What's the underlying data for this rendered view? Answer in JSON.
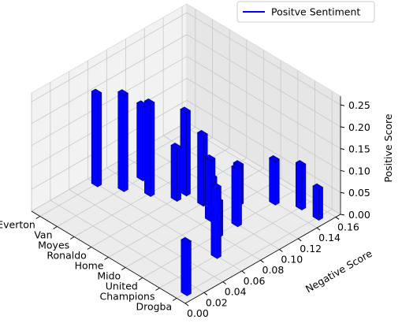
{
  "chart_data": {
    "type": "bar3d",
    "xlabel": "",
    "ylabel": "Negative Score",
    "zlabel": "Positive Score",
    "categories": [
      "Everton",
      "Van",
      "Moyes",
      "Ronaldo",
      "Home",
      "Mido",
      "United",
      "Champions",
      "Drogba"
    ],
    "ylim": [
      0,
      0.165
    ],
    "yticks": [
      {
        "value": 0,
        "label": "0.00"
      },
      {
        "value": 0.02,
        "label": "0.02"
      },
      {
        "value": 0.04,
        "label": "0.04"
      },
      {
        "value": 0.06,
        "label": "0.06"
      },
      {
        "value": 0.08,
        "label": "0.08"
      },
      {
        "value": 0.1,
        "label": "0.10"
      },
      {
        "value": 0.12,
        "label": "0.12"
      },
      {
        "value": 0.14,
        "label": "0.14"
      },
      {
        "value": 0.16,
        "label": "0.16"
      }
    ],
    "zlim": [
      0,
      0.27
    ],
    "zticks": [
      {
        "value": 0,
        "label": "0.00"
      },
      {
        "value": 0.05,
        "label": "0.05"
      },
      {
        "value": 0.1,
        "label": "0.10"
      },
      {
        "value": 0.15,
        "label": "0.15"
      },
      {
        "value": 0.2,
        "label": "0.20"
      },
      {
        "value": 0.25,
        "label": "0.25"
      }
    ],
    "grid": true,
    "legend": "upper right",
    "series": [
      {
        "name": "Positve Sentiment",
        "color": "#0000ff",
        "x": [
          "Everton",
          "Van",
          "Van",
          "Moyes",
          "Ronaldo",
          "Ronaldo",
          "Home",
          "Home",
          "Mido",
          "Mido",
          "United",
          "United",
          "United",
          "Champions",
          "Champions",
          "Drogba",
          "Drogba"
        ],
        "y": [
          0.06,
          0.07,
          0.09,
          0.08,
          0.1,
          0.09,
          0.1,
          0.11,
          0.09,
          0.12,
          0.08,
          0.1,
          0.14,
          0.06,
          0.15,
          0.01,
          0.15
        ],
        "values": [
          0.21,
          0.22,
          0.17,
          0.21,
          0.19,
          0.12,
          0.16,
          0.05,
          0.14,
          0.09,
          0.08,
          0.13,
          0.1,
          0.16,
          0.1,
          0.12,
          0.07
        ]
      }
    ]
  }
}
